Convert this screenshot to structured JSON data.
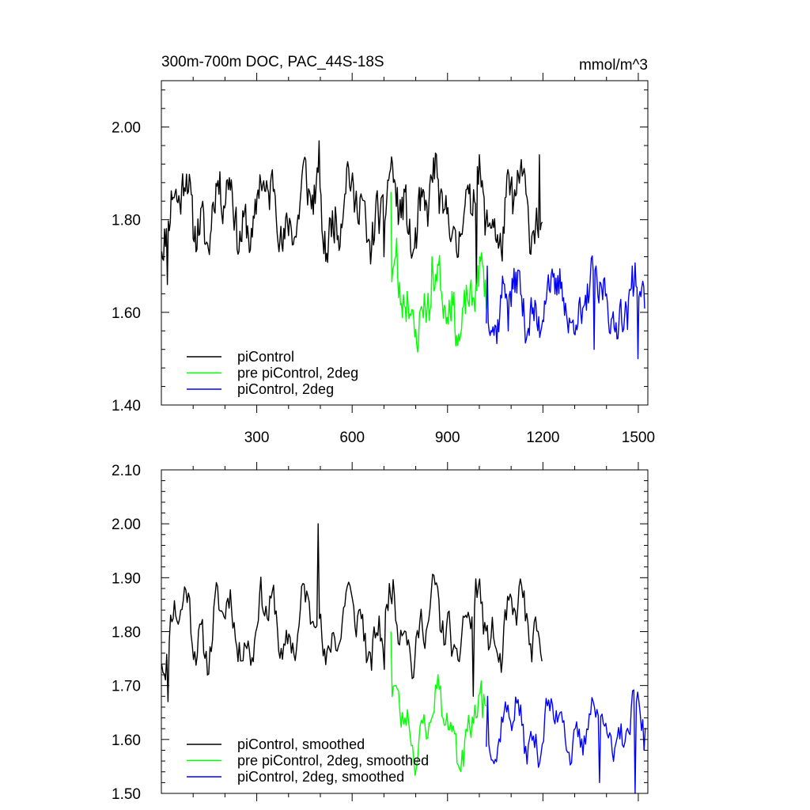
{
  "chart_data": [
    {
      "type": "line",
      "title": "300m-700m DOC, PAC_44S-18S",
      "units": "mmol/m^3",
      "xlim": [
        0,
        1530
      ],
      "ylim": [
        1.4,
        2.1
      ],
      "xticks": [
        300,
        600,
        900,
        1200,
        1500
      ],
      "xticklabels": [
        "300",
        "600",
        "900",
        "1200",
        "1500"
      ],
      "yticks": [
        1.4,
        1.6,
        1.8,
        2.0
      ],
      "yticklabels": [
        "1.40",
        "1.60",
        "1.80",
        "2.00"
      ],
      "grid": false,
      "legend_position": "bottom-left",
      "series": [
        {
          "name": "piControl",
          "color": "#000000",
          "x_start": 1,
          "x_end": 1200,
          "step": 3,
          "base": 1.82,
          "amp": 0.06,
          "noise": 0.045,
          "seed": 11,
          "anchors": [
            [
              10,
              1.78
            ],
            [
              20,
              1.66
            ],
            [
              160,
              1.83
            ],
            [
              495,
              1.97
            ],
            [
              700,
              1.72
            ],
            [
              990,
              1.66
            ],
            [
              1190,
              1.94
            ]
          ]
        },
        {
          "name": "pre piControl, 2deg",
          "color": "#00ff00",
          "x_start": 722,
          "x_end": 1022,
          "step": 3,
          "base": 1.62,
          "amp": 0.05,
          "noise": 0.04,
          "seed": 23,
          "anchors": [
            [
              722,
              1.86
            ],
            [
              740,
              1.76
            ],
            [
              770,
              1.58
            ],
            [
              850,
              1.72
            ],
            [
              940,
              1.55
            ],
            [
              990,
              1.66
            ]
          ]
        },
        {
          "name": "piControl, 2deg",
          "color": "#0000ff",
          "x_start": 1022,
          "x_end": 1522,
          "step": 3,
          "base": 1.62,
          "amp": 0.045,
          "noise": 0.04,
          "seed": 37,
          "anchors": [
            [
              1025,
              1.7
            ],
            [
              1090,
              1.56
            ],
            [
              1360,
              1.52
            ],
            [
              1500,
              1.5
            ],
            [
              1480,
              1.7
            ]
          ]
        }
      ]
    },
    {
      "type": "line",
      "title": "",
      "xlim": [
        0,
        1530
      ],
      "ylim": [
        1.5,
        2.1
      ],
      "xticks": [
        300,
        600,
        900,
        1200,
        1500
      ],
      "xticklabels": [],
      "yticks": [
        1.5,
        1.6,
        1.7,
        1.8,
        1.9,
        2.0,
        2.1
      ],
      "yticklabels": [
        "1.50",
        "1.60",
        "1.70",
        "1.80",
        "1.90",
        "2.00",
        "2.10"
      ],
      "grid": false,
      "legend_position": "bottom-left",
      "series": [
        {
          "name": "piControl, smoothed",
          "color": "#000000",
          "x_start": 1,
          "x_end": 1200,
          "step": 4,
          "base": 1.81,
          "amp": 0.05,
          "noise": 0.03,
          "seed": 11,
          "anchors": [
            [
              20,
              1.67
            ],
            [
              495,
              2.0
            ],
            [
              700,
              1.73
            ],
            [
              980,
              1.68
            ],
            [
              1195,
              1.76
            ]
          ]
        },
        {
          "name": "pre piControl, 2deg, smoothed",
          "color": "#00ff00",
          "x_start": 722,
          "x_end": 1022,
          "step": 4,
          "base": 1.63,
          "amp": 0.045,
          "noise": 0.025,
          "seed": 23,
          "anchors": [
            [
              722,
              1.8
            ],
            [
              745,
              1.69
            ],
            [
              870,
              1.72
            ],
            [
              950,
              1.55
            ],
            [
              1010,
              1.64
            ]
          ]
        },
        {
          "name": "piControl, 2deg, smoothed",
          "color": "#0000ff",
          "x_start": 1022,
          "x_end": 1522,
          "step": 4,
          "base": 1.62,
          "amp": 0.04,
          "noise": 0.025,
          "seed": 37,
          "anchors": [
            [
              1025,
              1.68
            ],
            [
              1380,
              1.52
            ],
            [
              1490,
              1.5
            ],
            [
              1520,
              1.58
            ]
          ]
        }
      ]
    }
  ]
}
